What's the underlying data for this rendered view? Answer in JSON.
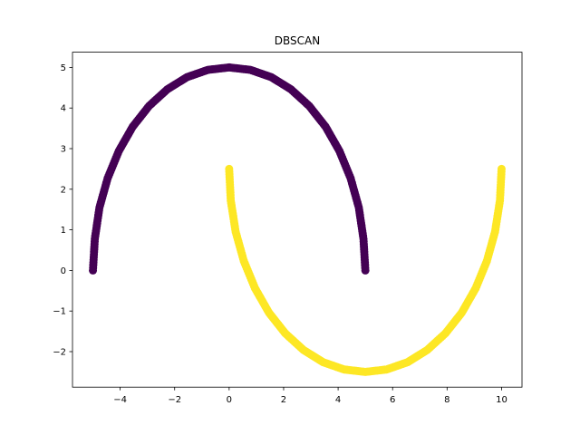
{
  "chart_data": {
    "type": "scatter",
    "title": "DBSCAN",
    "xlabel": "",
    "ylabel": "",
    "xlim": [
      -5.75,
      10.75
    ],
    "ylim": [
      -2.875,
      5.375
    ],
    "grid": false,
    "legend": "none",
    "x_ticks": [
      -4,
      -2,
      0,
      2,
      4,
      6,
      8,
      10
    ],
    "x_tick_labels": [
      "−4",
      "−2",
      "0",
      "2",
      "4",
      "6",
      "8",
      "10"
    ],
    "y_ticks": [
      -2,
      -1,
      0,
      1,
      2,
      3,
      4,
      5
    ],
    "y_tick_labels": [
      "−2",
      "−1",
      "0",
      "1",
      "2",
      "3",
      "4",
      "5"
    ],
    "series": [
      {
        "cluster": 0,
        "color": "#440154",
        "shape": "upper half-ellipse centered at (0,0), x radius 5, y radius 5",
        "x": [
          -5.0,
          -4.93,
          -4.76,
          -4.46,
          -4.05,
          -3.54,
          -2.94,
          -2.27,
          -1.55,
          -0.78,
          0.0,
          0.78,
          1.55,
          2.27,
          2.94,
          3.54,
          4.05,
          4.46,
          4.76,
          4.93,
          5.0
        ],
        "y": [
          0.0,
          0.78,
          1.55,
          2.27,
          2.94,
          3.54,
          4.05,
          4.46,
          4.76,
          4.94,
          5.0,
          4.94,
          4.76,
          4.46,
          4.05,
          3.54,
          2.94,
          2.27,
          1.55,
          0.78,
          0.0
        ]
      },
      {
        "cluster": 1,
        "color": "#fde725",
        "shape": "lower half-ellipse centered at (5,2.5), x radius 5, y radius 5",
        "x": [
          0.0,
          0.06,
          0.24,
          0.54,
          0.95,
          1.46,
          2.06,
          2.73,
          3.45,
          4.22,
          5.0,
          5.78,
          6.55,
          7.27,
          7.94,
          8.54,
          9.05,
          9.46,
          9.76,
          9.94,
          10.0
        ],
        "y": [
          2.5,
          1.72,
          0.95,
          0.23,
          -0.44,
          -1.04,
          -1.55,
          -1.96,
          -2.26,
          -2.44,
          -2.5,
          -2.44,
          -2.26,
          -1.96,
          -1.55,
          -1.04,
          -0.44,
          0.23,
          0.95,
          1.72,
          2.5
        ]
      }
    ]
  }
}
